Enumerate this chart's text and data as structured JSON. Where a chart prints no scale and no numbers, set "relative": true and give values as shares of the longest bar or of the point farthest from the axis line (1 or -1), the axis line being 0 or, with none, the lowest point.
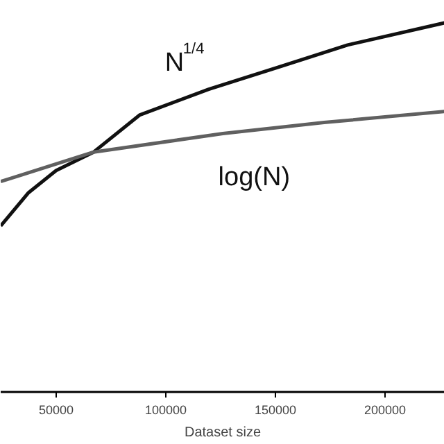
{
  "chart_data": {
    "type": "line",
    "relative": true,
    "xlabel": "Dataset size",
    "xlim": [
      24700,
      227200
    ],
    "xticks": [
      50000,
      100000,
      150000,
      200000
    ],
    "series": [
      {
        "name": "N$^{1/4}$",
        "color": "#111111",
        "x": [
          24700,
          37400,
          50000,
          67100,
          88000,
          119600,
          151300,
          182900,
          227200
        ],
        "values": [
          0.45,
          0.54,
          0.6,
          0.65,
          0.75,
          0.82,
          0.88,
          0.94,
          1.0
        ]
      },
      {
        "name": "log(N)",
        "color": "#606060",
        "x": [
          24700,
          67100,
          126000,
          172200,
          227200
        ],
        "values": [
          0.57,
          0.65,
          0.7,
          0.73,
          0.76
        ]
      }
    ]
  }
}
